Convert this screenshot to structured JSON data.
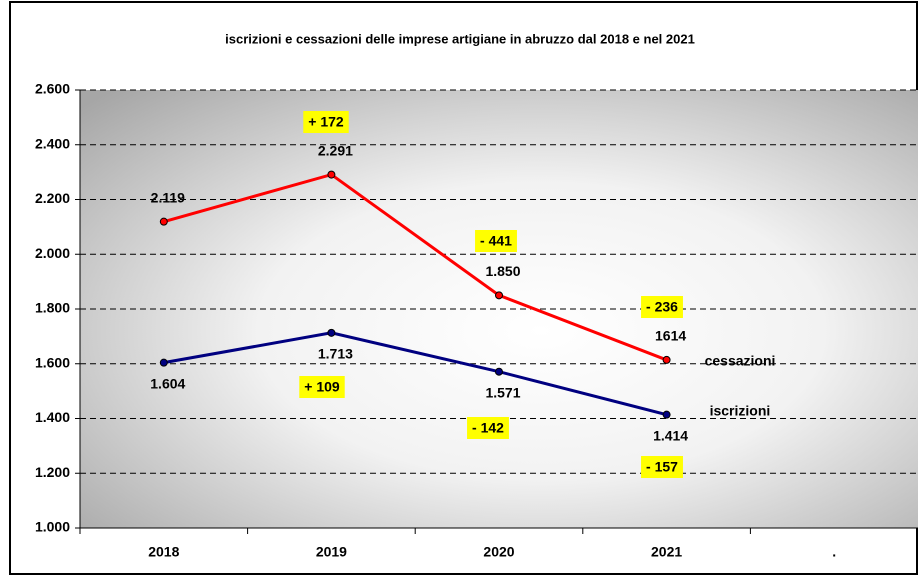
{
  "chart_data": {
    "type": "line",
    "title": "iscrizioni e cessazioni delle imprese artigiane in abruzzo dal 2018 e nel 2021",
    "categories": [
      "2018",
      "2019",
      "2020",
      "2021",
      "."
    ],
    "series": [
      {
        "name": "cessazioni",
        "color": "#ff0000",
        "values": [
          2119,
          2291,
          1850,
          1614,
          null
        ],
        "value_labels": [
          "2.119",
          "2.291",
          "1.850",
          "1614",
          null
        ]
      },
      {
        "name": "iscrizioni",
        "color": "#000080",
        "values": [
          1604,
          1713,
          1571,
          1414,
          null
        ],
        "value_labels": [
          "1.604",
          "1.713",
          "1.571",
          "1.414",
          null
        ]
      }
    ],
    "annotations": [
      "+ 172",
      "- 441",
      "- 236",
      "+ 109",
      "- 142",
      "- 157"
    ],
    "ylim": [
      1000,
      2600
    ],
    "yticks": [
      {
        "value": 1000,
        "label": "1.000"
      },
      {
        "value": 1200,
        "label": "1.200"
      },
      {
        "value": 1400,
        "label": "1.400"
      },
      {
        "value": 1600,
        "label": "1.600"
      },
      {
        "value": 1800,
        "label": "1.800"
      },
      {
        "value": 2000,
        "label": "2.000"
      },
      {
        "value": 2200,
        "label": "2.200"
      },
      {
        "value": 2400,
        "label": "2.400"
      },
      {
        "value": 2600,
        "label": "2.600"
      }
    ],
    "grid": true
  }
}
